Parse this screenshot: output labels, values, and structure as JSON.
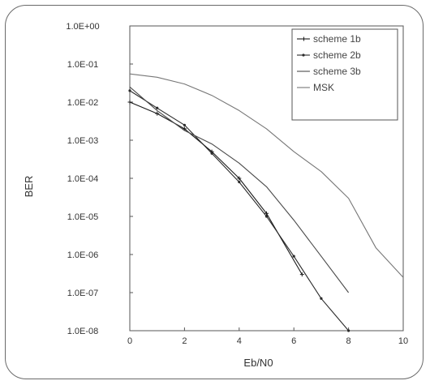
{
  "chart_data": {
    "type": "line",
    "xlabel": "Eb/N0",
    "ylabel": "BER",
    "xlim": [
      0,
      10
    ],
    "ylim": [
      1e-08,
      1
    ],
    "yscale": "log",
    "x_ticks": [
      "0",
      "2",
      "4",
      "6",
      "8",
      "10"
    ],
    "y_ticks": [
      "1.0E+00",
      "1.0E-01",
      "1.0E-02",
      "1.0E-03",
      "1.0E-04",
      "1.0E-05",
      "1.0E-06",
      "1.0E-07",
      "1.0E-08"
    ],
    "grid": false,
    "legend_position": "top-right",
    "series": [
      {
        "name": "scheme 1b",
        "color": "#1a1a1a",
        "marker": "plus",
        "x": [
          0,
          1,
          2,
          3,
          4,
          5,
          6.3
        ],
        "y": [
          0.01,
          0.005,
          0.002,
          0.0005,
          0.0001,
          1.2e-05,
          3e-07
        ]
      },
      {
        "name": "scheme 2b",
        "color": "#2a2a2a",
        "marker": "dot",
        "x": [
          0,
          1,
          2,
          3,
          4,
          5,
          6,
          7,
          8
        ],
        "y": [
          0.02,
          0.007,
          0.0025,
          0.00045,
          8e-05,
          1e-05,
          9e-07,
          7e-08,
          1e-08
        ]
      },
      {
        "name": "scheme 3b",
        "color": "#4a4a4a",
        "marker": "none",
        "x": [
          0,
          1,
          2,
          3,
          4,
          5,
          6,
          7,
          8
        ],
        "y": [
          0.025,
          0.006,
          0.0018,
          0.0008,
          0.00025,
          6e-05,
          8e-06,
          9e-07,
          1e-07
        ]
      },
      {
        "name": "MSK",
        "color": "#777777",
        "marker": "none",
        "x": [
          0,
          1,
          2,
          3,
          4,
          5,
          6,
          7,
          8,
          9,
          10
        ],
        "y": [
          0.055,
          0.045,
          0.03,
          0.015,
          0.006,
          0.002,
          0.0005,
          0.00015,
          3e-05,
          1.5e-06,
          2.5e-07
        ]
      }
    ]
  }
}
